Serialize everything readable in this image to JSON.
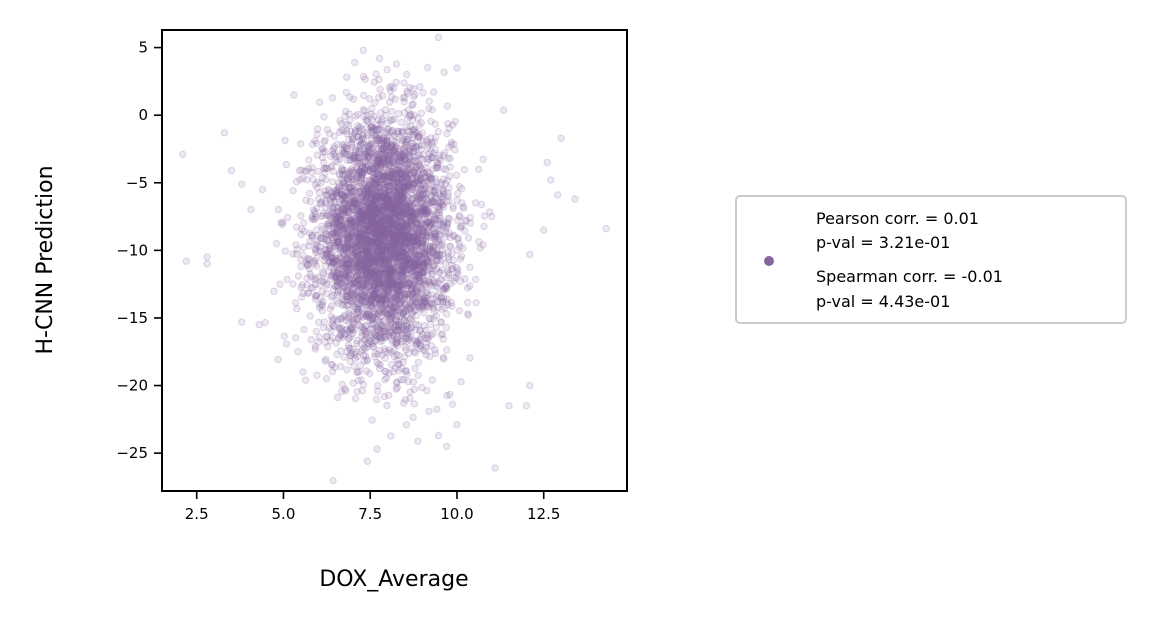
{
  "chart_data": {
    "type": "scatter",
    "xlabel": "DOX_Average",
    "ylabel": "H-CNN Prediction",
    "xlim": [
      1.5,
      14.9
    ],
    "ylim": [
      -27.8,
      6.3
    ],
    "x_ticks": [
      2.5,
      5.0,
      7.5,
      10.0,
      12.5
    ],
    "x_tick_labels": [
      "2.5",
      "5.0",
      "7.5",
      "10.0",
      "12.5"
    ],
    "y_ticks": [
      5,
      0,
      -5,
      -10,
      -15,
      -20,
      -25
    ],
    "y_tick_labels": [
      "5",
      "0",
      "−5",
      "−10",
      "−15",
      "−20",
      "−25"
    ],
    "grid": false,
    "marker_color": "#8565a0",
    "marker_alpha": 0.15,
    "legend_position": "right, outside plot",
    "legend_lines": [
      "Pearson corr. = 0.01",
      "p-val = 3.21e-01",
      "Spearman corr. = -0.01",
      "p-val = 4.43e-01"
    ],
    "distribution": {
      "x_mean": 7.9,
      "x_sd": 0.95,
      "y_mean": -9.0,
      "y_sd": 4.3,
      "n_points": 4500
    },
    "outliers": [
      {
        "x": 2.1,
        "y": -2.9
      },
      {
        "x": 2.2,
        "y": -10.8
      },
      {
        "x": 2.8,
        "y": -10.5
      },
      {
        "x": 2.8,
        "y": -11.0
      },
      {
        "x": 3.3,
        "y": -1.3
      },
      {
        "x": 3.5,
        "y": -4.1
      },
      {
        "x": 3.8,
        "y": -5.1
      },
      {
        "x": 3.8,
        "y": -15.3
      },
      {
        "x": 4.3,
        "y": -15.5
      },
      {
        "x": 4.4,
        "y": -5.5
      },
      {
        "x": 4.8,
        "y": -9.5
      },
      {
        "x": 4.9,
        "y": -12.5
      },
      {
        "x": 5.3,
        "y": 1.5
      },
      {
        "x": 7.3,
        "y": 4.8
      },
      {
        "x": 10.0,
        "y": 3.5
      },
      {
        "x": 11.1,
        "y": -26.1
      },
      {
        "x": 11.5,
        "y": -21.5
      },
      {
        "x": 12.0,
        "y": -21.5
      },
      {
        "x": 12.1,
        "y": -20.0
      },
      {
        "x": 12.6,
        "y": -3.5
      },
      {
        "x": 12.7,
        "y": -4.8
      },
      {
        "x": 12.9,
        "y": -5.9
      },
      {
        "x": 13.0,
        "y": -1.7
      },
      {
        "x": 13.4,
        "y": -6.2
      },
      {
        "x": 14.3,
        "y": -8.4
      },
      {
        "x": 12.5,
        "y": -8.5
      },
      {
        "x": 12.1,
        "y": -10.3
      },
      {
        "x": 9.7,
        "y": -24.5
      },
      {
        "x": 10.0,
        "y": -22.9
      },
      {
        "x": 7.7,
        "y": -24.7
      },
      {
        "x": 6.2,
        "y": -18.2
      },
      {
        "x": 5.8,
        "y": -16.6
      }
    ]
  }
}
